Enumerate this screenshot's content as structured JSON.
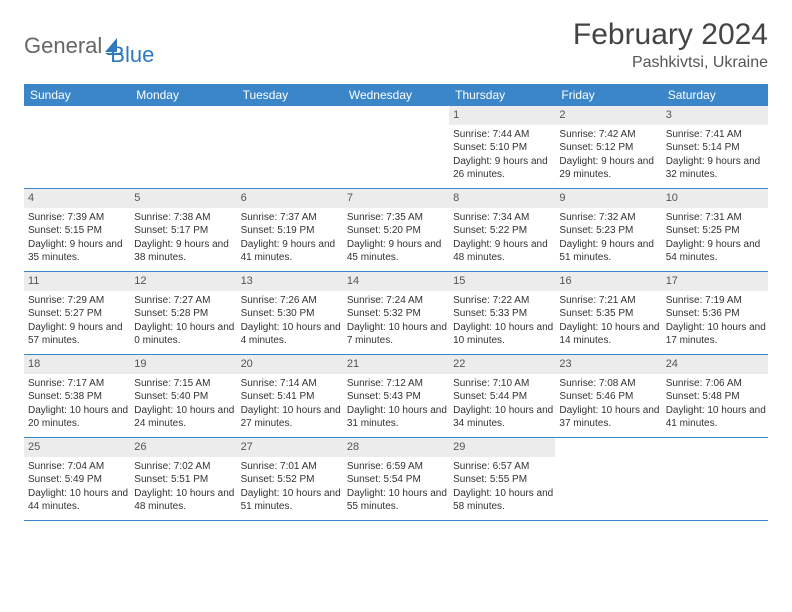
{
  "logo": {
    "part1": "General",
    "part2": "Blue"
  },
  "title": "February 2024",
  "location": "Pashkivtsi, Ukraine",
  "colors": {
    "header_bg": "#3a86c8",
    "daynum_bg": "#ececec",
    "rule": "#3a86c8",
    "text": "#333333",
    "logo_gray": "#666666",
    "logo_blue": "#2f79bf"
  },
  "day_names": [
    "Sunday",
    "Monday",
    "Tuesday",
    "Wednesday",
    "Thursday",
    "Friday",
    "Saturday"
  ],
  "weeks": [
    [
      {
        "day": "",
        "sunrise": "",
        "sunset": "",
        "daylight": ""
      },
      {
        "day": "",
        "sunrise": "",
        "sunset": "",
        "daylight": ""
      },
      {
        "day": "",
        "sunrise": "",
        "sunset": "",
        "daylight": ""
      },
      {
        "day": "",
        "sunrise": "",
        "sunset": "",
        "daylight": ""
      },
      {
        "day": "1",
        "sunrise": "Sunrise: 7:44 AM",
        "sunset": "Sunset: 5:10 PM",
        "daylight": "Daylight: 9 hours and 26 minutes."
      },
      {
        "day": "2",
        "sunrise": "Sunrise: 7:42 AM",
        "sunset": "Sunset: 5:12 PM",
        "daylight": "Daylight: 9 hours and 29 minutes."
      },
      {
        "day": "3",
        "sunrise": "Sunrise: 7:41 AM",
        "sunset": "Sunset: 5:14 PM",
        "daylight": "Daylight: 9 hours and 32 minutes."
      }
    ],
    [
      {
        "day": "4",
        "sunrise": "Sunrise: 7:39 AM",
        "sunset": "Sunset: 5:15 PM",
        "daylight": "Daylight: 9 hours and 35 minutes."
      },
      {
        "day": "5",
        "sunrise": "Sunrise: 7:38 AM",
        "sunset": "Sunset: 5:17 PM",
        "daylight": "Daylight: 9 hours and 38 minutes."
      },
      {
        "day": "6",
        "sunrise": "Sunrise: 7:37 AM",
        "sunset": "Sunset: 5:19 PM",
        "daylight": "Daylight: 9 hours and 41 minutes."
      },
      {
        "day": "7",
        "sunrise": "Sunrise: 7:35 AM",
        "sunset": "Sunset: 5:20 PM",
        "daylight": "Daylight: 9 hours and 45 minutes."
      },
      {
        "day": "8",
        "sunrise": "Sunrise: 7:34 AM",
        "sunset": "Sunset: 5:22 PM",
        "daylight": "Daylight: 9 hours and 48 minutes."
      },
      {
        "day": "9",
        "sunrise": "Sunrise: 7:32 AM",
        "sunset": "Sunset: 5:23 PM",
        "daylight": "Daylight: 9 hours and 51 minutes."
      },
      {
        "day": "10",
        "sunrise": "Sunrise: 7:31 AM",
        "sunset": "Sunset: 5:25 PM",
        "daylight": "Daylight: 9 hours and 54 minutes."
      }
    ],
    [
      {
        "day": "11",
        "sunrise": "Sunrise: 7:29 AM",
        "sunset": "Sunset: 5:27 PM",
        "daylight": "Daylight: 9 hours and 57 minutes."
      },
      {
        "day": "12",
        "sunrise": "Sunrise: 7:27 AM",
        "sunset": "Sunset: 5:28 PM",
        "daylight": "Daylight: 10 hours and 0 minutes."
      },
      {
        "day": "13",
        "sunrise": "Sunrise: 7:26 AM",
        "sunset": "Sunset: 5:30 PM",
        "daylight": "Daylight: 10 hours and 4 minutes."
      },
      {
        "day": "14",
        "sunrise": "Sunrise: 7:24 AM",
        "sunset": "Sunset: 5:32 PM",
        "daylight": "Daylight: 10 hours and 7 minutes."
      },
      {
        "day": "15",
        "sunrise": "Sunrise: 7:22 AM",
        "sunset": "Sunset: 5:33 PM",
        "daylight": "Daylight: 10 hours and 10 minutes."
      },
      {
        "day": "16",
        "sunrise": "Sunrise: 7:21 AM",
        "sunset": "Sunset: 5:35 PM",
        "daylight": "Daylight: 10 hours and 14 minutes."
      },
      {
        "day": "17",
        "sunrise": "Sunrise: 7:19 AM",
        "sunset": "Sunset: 5:36 PM",
        "daylight": "Daylight: 10 hours and 17 minutes."
      }
    ],
    [
      {
        "day": "18",
        "sunrise": "Sunrise: 7:17 AM",
        "sunset": "Sunset: 5:38 PM",
        "daylight": "Daylight: 10 hours and 20 minutes."
      },
      {
        "day": "19",
        "sunrise": "Sunrise: 7:15 AM",
        "sunset": "Sunset: 5:40 PM",
        "daylight": "Daylight: 10 hours and 24 minutes."
      },
      {
        "day": "20",
        "sunrise": "Sunrise: 7:14 AM",
        "sunset": "Sunset: 5:41 PM",
        "daylight": "Daylight: 10 hours and 27 minutes."
      },
      {
        "day": "21",
        "sunrise": "Sunrise: 7:12 AM",
        "sunset": "Sunset: 5:43 PM",
        "daylight": "Daylight: 10 hours and 31 minutes."
      },
      {
        "day": "22",
        "sunrise": "Sunrise: 7:10 AM",
        "sunset": "Sunset: 5:44 PM",
        "daylight": "Daylight: 10 hours and 34 minutes."
      },
      {
        "day": "23",
        "sunrise": "Sunrise: 7:08 AM",
        "sunset": "Sunset: 5:46 PM",
        "daylight": "Daylight: 10 hours and 37 minutes."
      },
      {
        "day": "24",
        "sunrise": "Sunrise: 7:06 AM",
        "sunset": "Sunset: 5:48 PM",
        "daylight": "Daylight: 10 hours and 41 minutes."
      }
    ],
    [
      {
        "day": "25",
        "sunrise": "Sunrise: 7:04 AM",
        "sunset": "Sunset: 5:49 PM",
        "daylight": "Daylight: 10 hours and 44 minutes."
      },
      {
        "day": "26",
        "sunrise": "Sunrise: 7:02 AM",
        "sunset": "Sunset: 5:51 PM",
        "daylight": "Daylight: 10 hours and 48 minutes."
      },
      {
        "day": "27",
        "sunrise": "Sunrise: 7:01 AM",
        "sunset": "Sunset: 5:52 PM",
        "daylight": "Daylight: 10 hours and 51 minutes."
      },
      {
        "day": "28",
        "sunrise": "Sunrise: 6:59 AM",
        "sunset": "Sunset: 5:54 PM",
        "daylight": "Daylight: 10 hours and 55 minutes."
      },
      {
        "day": "29",
        "sunrise": "Sunrise: 6:57 AM",
        "sunset": "Sunset: 5:55 PM",
        "daylight": "Daylight: 10 hours and 58 minutes."
      },
      {
        "day": "",
        "sunrise": "",
        "sunset": "",
        "daylight": ""
      },
      {
        "day": "",
        "sunrise": "",
        "sunset": "",
        "daylight": ""
      }
    ]
  ]
}
